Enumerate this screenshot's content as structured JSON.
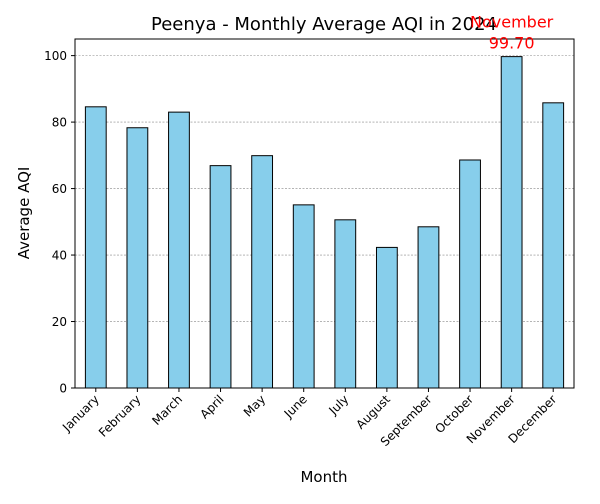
{
  "chart_data": {
    "type": "bar",
    "title": "Peenya - Monthly Average AQI in 2024",
    "xlabel": "Month",
    "ylabel": "Average AQI",
    "categories": [
      "January",
      "February",
      "March",
      "April",
      "May",
      "June",
      "July",
      "August",
      "September",
      "October",
      "November",
      "December"
    ],
    "values": [
      84.6,
      78.3,
      83.0,
      66.9,
      69.9,
      55.1,
      50.6,
      42.3,
      48.5,
      68.6,
      99.7,
      85.8
    ],
    "ylim": [
      0,
      105
    ],
    "yticks": [
      0,
      20,
      40,
      60,
      80,
      100
    ],
    "grid": "horizontal dashed",
    "annotation": {
      "month": "November",
      "value_text": "99.70",
      "color": "#ff0000"
    },
    "colors": {
      "bar_fill": "#87ceeb",
      "bar_edge": "#000000",
      "grid": "#888888"
    }
  }
}
